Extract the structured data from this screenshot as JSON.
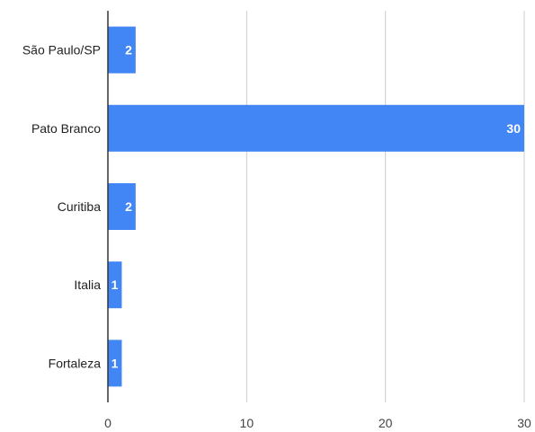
{
  "chart_data": {
    "type": "bar",
    "orientation": "horizontal",
    "title": "",
    "xlabel": "",
    "ylabel": "",
    "categories": [
      "São Paulo/SP",
      "Pato Branco",
      "Curitiba",
      "Italia",
      "Fortaleza"
    ],
    "values": [
      2,
      30,
      2,
      1,
      1
    ],
    "data_labels": [
      "2",
      "30",
      "2",
      "1",
      "1"
    ],
    "xlim": [
      0,
      30
    ],
    "x_ticks": [
      0,
      10,
      20,
      30
    ],
    "x_tick_labels": [
      "0",
      "10",
      "20",
      "30"
    ],
    "grid": "vertical",
    "legend": "none",
    "bar_color": "#4285f4",
    "grid_color": "#cccccc",
    "axis_color": "#333333"
  }
}
